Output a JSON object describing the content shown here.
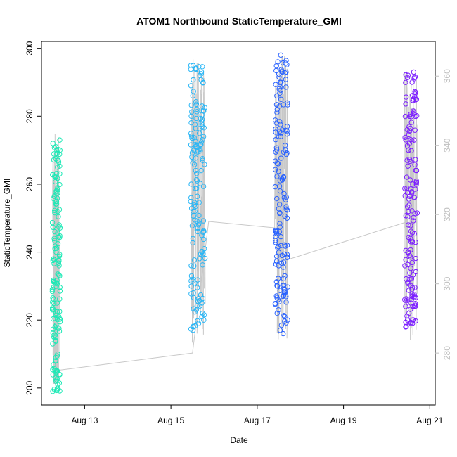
{
  "chart_data": {
    "type": "scatter",
    "title": "ATOM1 Northbound StaticTemperature_GMI",
    "xlabel": "Date",
    "ylabel": "StaticTemperature_GMI",
    "xlim": [
      "2016-08-12T00:00",
      "2016-08-21T03:00"
    ],
    "ylim": [
      195,
      302
    ],
    "y2lim": [
      265,
      370
    ],
    "x_ticks": [
      "Aug 13",
      "Aug 15",
      "Aug 17",
      "Aug 19",
      "Aug 21"
    ],
    "y_ticks": [
      200,
      220,
      240,
      260,
      280,
      300
    ],
    "y2_ticks": [
      280,
      300,
      320,
      340,
      360
    ],
    "colors": {
      "series_1": "#1de9b6",
      "series_2": "#29b6f6",
      "series_3": "#2962ff",
      "series_4": "#7c1fff",
      "right_axis_line": "#c8c8c8"
    },
    "grid": false,
    "legend": "none",
    "series": [
      {
        "axis": "left",
        "color": "#1de9b6",
        "x_range": [
          "2016-08-12T06:00",
          "2016-08-12T10:30"
        ],
        "y_range": [
          199,
          273
        ],
        "values": [
          199,
          200,
          201,
          202,
          203,
          204,
          205,
          209,
          210,
          213,
          215,
          218,
          221,
          222,
          223,
          225,
          229,
          231,
          233,
          236,
          240,
          244,
          246,
          248,
          252,
          255,
          258,
          262,
          265,
          267,
          269,
          270,
          271,
          272,
          273
        ]
      },
      {
        "axis": "left",
        "color": "#29b6f6",
        "x_range": [
          "2016-08-15T11:00",
          "2016-08-15T19:00"
        ],
        "y_range": [
          217,
          295
        ],
        "values": [
          217,
          218,
          219,
          220,
          221,
          222,
          223,
          225,
          228,
          230,
          233,
          236,
          240,
          244,
          248,
          252,
          256,
          260,
          264,
          267,
          270,
          274,
          277,
          280,
          283,
          286,
          289,
          292,
          295
        ]
      },
      {
        "axis": "left",
        "color": "#2962ff",
        "x_range": [
          "2016-08-17T10:00",
          "2016-08-17T17:00"
        ],
        "y_range": [
          216,
          298
        ],
        "values": [
          216,
          217,
          223,
          226,
          230,
          233,
          236,
          239,
          242,
          246,
          250,
          254,
          258,
          262,
          266,
          270,
          274,
          278,
          282,
          286,
          290,
          293,
          296,
          298
        ]
      },
      {
        "axis": "left",
        "color": "#7c1fff",
        "x_range": [
          "2016-08-20T10:00",
          "2016-08-20T17:00"
        ],
        "y_range": [
          218,
          293
        ],
        "values": [
          218,
          219,
          220,
          222,
          224,
          225,
          226,
          227,
          229,
          232,
          236,
          240,
          244,
          248,
          252,
          256,
          260,
          264,
          267,
          270,
          273,
          276,
          280,
          285,
          290,
          293
        ]
      }
    ],
    "right_axis_series": {
      "axis": "right",
      "color": "#c8c8c8",
      "connector_points": [
        {
          "x": "2016-08-12T09:00",
          "y": 275
        },
        {
          "x": "2016-08-15T12:00",
          "y": 280
        },
        {
          "x": "2016-08-15T21:00",
          "y": 318
        },
        {
          "x": "2016-08-17T13:00",
          "y": 316
        },
        {
          "x": "2016-08-17T17:00",
          "y": 307
        },
        {
          "x": "2016-08-20T12:00",
          "y": 318
        }
      ]
    }
  }
}
